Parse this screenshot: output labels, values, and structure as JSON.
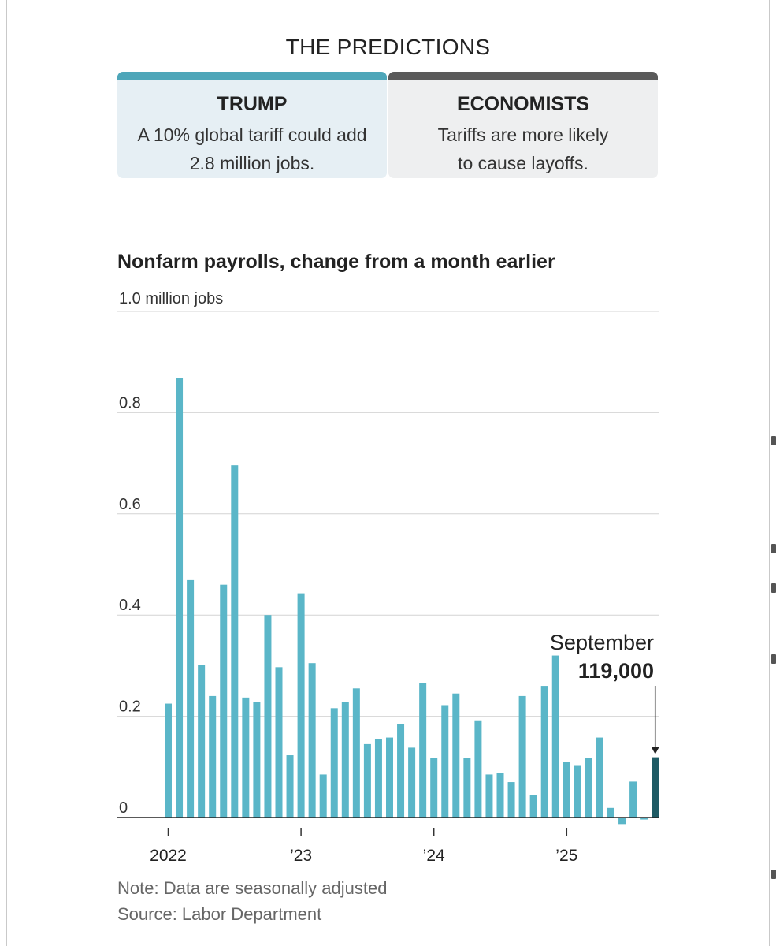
{
  "predictions": {
    "heading": "THE PREDICTIONS",
    "trump": {
      "title": "TRUMP",
      "line1": "A 10% global tariff could add",
      "line2": "2.8 million jobs.",
      "accent": "#4ea6b9"
    },
    "economists": {
      "title": "ECONOMISTS",
      "line1": "Tariffs are more likely",
      "line2": "to cause layoffs.",
      "accent": "#5a5a5a"
    }
  },
  "notes": {
    "note": "Note: Data are seasonally adjusted",
    "source": "Source: Labor Department"
  },
  "chart_data": {
    "type": "bar",
    "title": "Nonfarm payrolls, change from a month earlier",
    "y_unit_label": "1.0 million jobs",
    "ylim": [
      -0.02,
      1.0
    ],
    "y_ticks": [
      {
        "value": 0,
        "label": "0"
      },
      {
        "value": 0.2,
        "label": "0.2"
      },
      {
        "value": 0.4,
        "label": "0.4"
      },
      {
        "value": 0.6,
        "label": "0.6"
      },
      {
        "value": 0.8,
        "label": "0.8"
      }
    ],
    "x_ticks": [
      {
        "index": 0,
        "label": "2022"
      },
      {
        "index": 12,
        "label": "’23"
      },
      {
        "index": 24,
        "label": "’24"
      },
      {
        "index": 36,
        "label": "’25"
      }
    ],
    "grid": true,
    "start_month": "2022-01",
    "values": [
      0.225,
      0.868,
      0.469,
      0.302,
      0.24,
      0.46,
      0.696,
      0.237,
      0.228,
      0.4,
      0.297,
      0.123,
      0.443,
      0.305,
      0.085,
      0.216,
      0.228,
      0.255,
      0.145,
      0.155,
      0.158,
      0.185,
      0.138,
      0.265,
      0.118,
      0.222,
      0.245,
      0.118,
      0.192,
      0.085,
      0.088,
      0.07,
      0.24,
      0.044,
      0.26,
      0.32,
      0.11,
      0.102,
      0.118,
      0.158,
      0.019,
      -0.013,
      0.071,
      -0.004,
      0.119
    ],
    "bar_color": "#5ab6c8",
    "highlight_color": "#1e5a64",
    "highlight_index": 44,
    "annotation": {
      "label": "September",
      "value_label": "119,000"
    }
  }
}
